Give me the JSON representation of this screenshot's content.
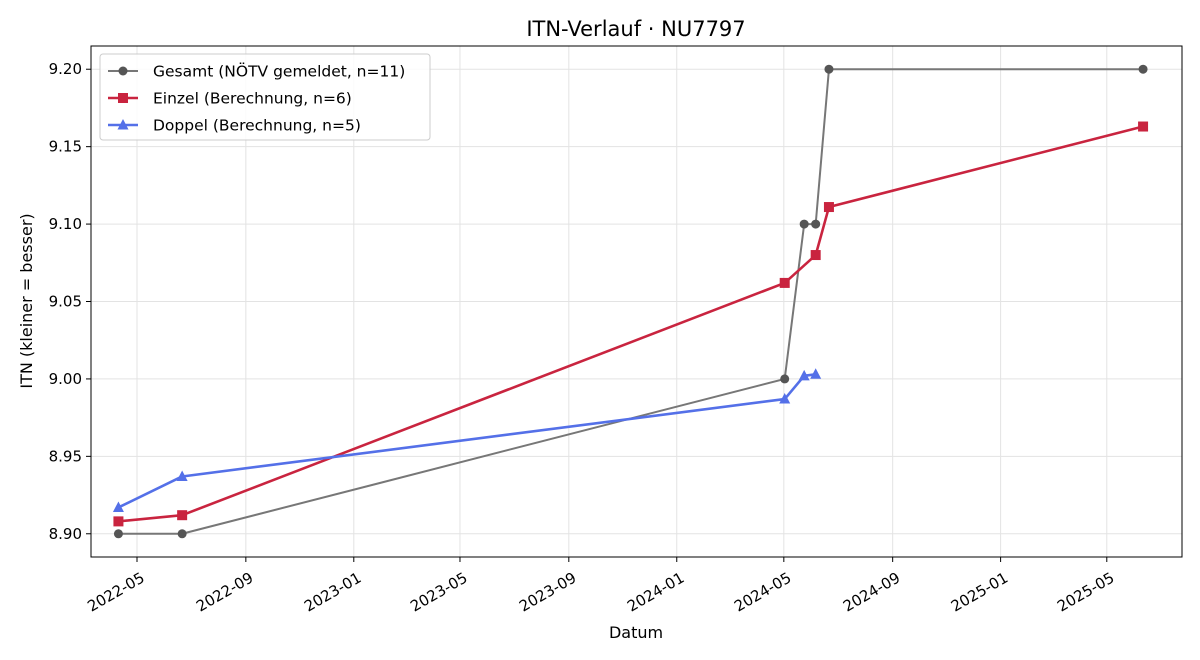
{
  "chart_data": {
    "type": "line",
    "title": "ITN-Verlauf · NU7797",
    "xlabel": "Datum",
    "ylabel": "ITN  (kleiner = besser)",
    "x_type": "date",
    "xlim": [
      "2022-03-10",
      "2025-07-25"
    ],
    "ylim": [
      8.885,
      9.215
    ],
    "x_ticks": [
      "2022-05-01",
      "2022-09-01",
      "2023-01-01",
      "2023-05-01",
      "2023-09-01",
      "2024-01-01",
      "2024-05-01",
      "2024-09-01",
      "2025-01-01",
      "2025-05-01"
    ],
    "x_tick_labels": [
      "2022-05",
      "2022-09",
      "2023-01",
      "2023-05",
      "2023-09",
      "2024-01",
      "2024-05",
      "2024-09",
      "2025-01",
      "2025-05"
    ],
    "y_ticks": [
      8.9,
      8.95,
      9.0,
      9.05,
      9.1,
      9.15,
      9.2
    ],
    "y_tick_labels": [
      "8.90",
      "8.95",
      "9.00",
      "9.05",
      "9.10",
      "9.15",
      "9.20"
    ],
    "grid": true,
    "legend_position": "top-left",
    "series": [
      {
        "name": "Gesamt (NÖTV gemeldet, n=11)",
        "color": "#777777",
        "marker_color": "#555555",
        "marker": "circle",
        "line_width": 2,
        "points": [
          {
            "x": "2022-04-10",
            "y": 8.9
          },
          {
            "x": "2022-06-21",
            "y": 8.9
          },
          {
            "x": "2024-05-02",
            "y": 9.0
          },
          {
            "x": "2024-05-24",
            "y": 9.1
          },
          {
            "x": "2024-06-06",
            "y": 9.1
          },
          {
            "x": "2024-06-21",
            "y": 9.2
          },
          {
            "x": "2025-06-11",
            "y": 9.2
          }
        ]
      },
      {
        "name": "Einzel (Berechnung, n=6)",
        "color": "#c9243f",
        "marker_color": "#c9243f",
        "marker": "square",
        "line_width": 2.6,
        "points": [
          {
            "x": "2022-04-10",
            "y": 8.908
          },
          {
            "x": "2022-06-21",
            "y": 8.912
          },
          {
            "x": "2024-05-02",
            "y": 9.062
          },
          {
            "x": "2024-06-06",
            "y": 9.08
          },
          {
            "x": "2024-06-21",
            "y": 9.111
          },
          {
            "x": "2025-06-11",
            "y": 9.163
          }
        ]
      },
      {
        "name": "Doppel (Berechnung, n=5)",
        "color": "#5470e8",
        "marker_color": "#5470e8",
        "marker": "triangle",
        "line_width": 2.6,
        "points": [
          {
            "x": "2022-04-10",
            "y": 8.917
          },
          {
            "x": "2022-06-21",
            "y": 8.937
          },
          {
            "x": "2024-05-02",
            "y": 8.987
          },
          {
            "x": "2024-05-24",
            "y": 9.002
          },
          {
            "x": "2024-06-06",
            "y": 9.003
          }
        ]
      }
    ]
  }
}
